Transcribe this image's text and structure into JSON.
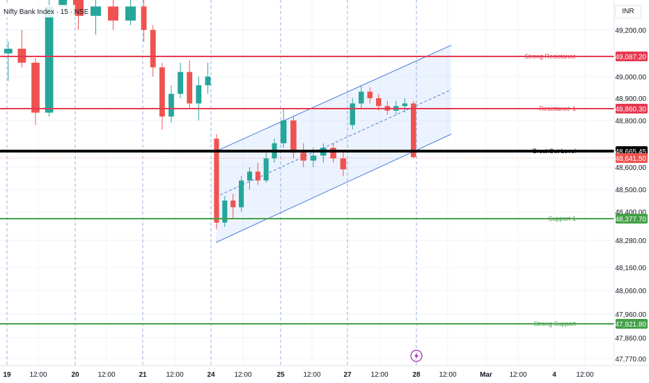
{
  "chart_data": {
    "type": "candlestick",
    "title": "Nifty Bank Index · 15 · NSE",
    "currency": "INR",
    "ylim": [
      47720,
      49370
    ],
    "y_ticks": [
      49200,
      49000,
      48900,
      48800,
      48600,
      48500,
      48400,
      48280,
      48160,
      48060,
      47960,
      47860,
      47770
    ],
    "x_ticks": [
      "19",
      "12:00",
      "20",
      "12:00",
      "21",
      "12:00",
      "24",
      "12:00",
      "25",
      "12:00",
      "27",
      "12:00",
      "28",
      "12:00",
      "Mar",
      "12:00",
      "4",
      "12:00"
    ],
    "session_breaks": [
      "19",
      "20",
      "21",
      "24",
      "25",
      "27",
      "28"
    ],
    "current_price": 48665.45,
    "last_marker": 48641.5,
    "levels": [
      {
        "label": "Strong Resistance",
        "value": 49087.2,
        "badge": "49,087.20",
        "color": "#e53950"
      },
      {
        "label": "Resistance-1",
        "value": 48860.3,
        "badge": "48,860.30",
        "color": "#e53950"
      },
      {
        "label": "BreakOut Level",
        "value": 48665.45,
        "badge": "48,665.45",
        "color": "#000000"
      },
      {
        "label": "Support-1",
        "value": 48377.7,
        "badge": "48,377.70",
        "color": "#43a047"
      },
      {
        "label": "Strong Support",
        "value": 47921.8,
        "badge": "47,921.80",
        "color": "#43a047"
      }
    ],
    "last_badge": "48,641.50",
    "channel": {
      "lower_start": {
        "x": 24.05,
        "y": 48270
      },
      "lower_end": {
        "x": 27.95,
        "y": 48740
      },
      "upper_start": {
        "x": 24.05,
        "y": 48665
      },
      "upper_end": {
        "x": 27.95,
        "y": 49135
      }
    },
    "candles": [
      {
        "d": "19a",
        "o": 49100,
        "h": 49150,
        "l": 48980,
        "c": 49120
      },
      {
        "d": "19b",
        "o": 49120,
        "h": 49200,
        "l": 49040,
        "c": 49060
      },
      {
        "d": "19c",
        "o": 49060,
        "h": 49080,
        "l": 48780,
        "c": 48840
      },
      {
        "d": "19d",
        "o": 48840,
        "h": 49330,
        "l": 48820,
        "c": 49300
      },
      {
        "d": "19e",
        "o": 49300,
        "h": 49360,
        "l": 49260,
        "c": 49330
      },
      {
        "d": "20a",
        "o": 49330,
        "h": 49380,
        "l": 49200,
        "c": 49260
      },
      {
        "d": "20b",
        "o": 49260,
        "h": 49340,
        "l": 49180,
        "c": 49300
      },
      {
        "d": "20c",
        "o": 49300,
        "h": 49350,
        "l": 49200,
        "c": 49240
      },
      {
        "d": "20d",
        "o": 49240,
        "h": 49330,
        "l": 49220,
        "c": 49300
      },
      {
        "d": "21a",
        "o": 49300,
        "h": 49360,
        "l": 49150,
        "c": 49200
      },
      {
        "d": "21b",
        "o": 49200,
        "h": 49220,
        "l": 49000,
        "c": 49040
      },
      {
        "d": "21c",
        "o": 49040,
        "h": 49060,
        "l": 48760,
        "c": 48820
      },
      {
        "d": "21d",
        "o": 48820,
        "h": 48960,
        "l": 48790,
        "c": 48920
      },
      {
        "d": "21e",
        "o": 48920,
        "h": 49060,
        "l": 48900,
        "c": 49020
      },
      {
        "d": "21f",
        "o": 49020,
        "h": 49070,
        "l": 48860,
        "c": 48880
      },
      {
        "d": "21g",
        "o": 48880,
        "h": 49000,
        "l": 48800,
        "c": 48960
      },
      {
        "d": "21h",
        "o": 48960,
        "h": 49060,
        "l": 48920,
        "c": 49000
      },
      {
        "d": "24a",
        "o": 48720,
        "h": 48740,
        "l": 48330,
        "c": 48360
      },
      {
        "d": "24b",
        "o": 48360,
        "h": 48470,
        "l": 48340,
        "c": 48450
      },
      {
        "d": "24c",
        "o": 48450,
        "h": 48480,
        "l": 48380,
        "c": 48420
      },
      {
        "d": "24d",
        "o": 48420,
        "h": 48560,
        "l": 48400,
        "c": 48540
      },
      {
        "d": "24e",
        "o": 48540,
        "h": 48600,
        "l": 48500,
        "c": 48580
      },
      {
        "d": "24f",
        "o": 48580,
        "h": 48620,
        "l": 48520,
        "c": 48540
      },
      {
        "d": "24g",
        "o": 48540,
        "h": 48660,
        "l": 48530,
        "c": 48640
      },
      {
        "d": "24h",
        "o": 48640,
        "h": 48720,
        "l": 48620,
        "c": 48700
      },
      {
        "d": "25a",
        "o": 48700,
        "h": 48860,
        "l": 48680,
        "c": 48800
      },
      {
        "d": "25b",
        "o": 48800,
        "h": 48820,
        "l": 48640,
        "c": 48660
      },
      {
        "d": "25c",
        "o": 48660,
        "h": 48700,
        "l": 48600,
        "c": 48630
      },
      {
        "d": "25d",
        "o": 48630,
        "h": 48680,
        "l": 48600,
        "c": 48650
      },
      {
        "d": "25e",
        "o": 48650,
        "h": 48700,
        "l": 48620,
        "c": 48680
      },
      {
        "d": "25f",
        "o": 48680,
        "h": 48700,
        "l": 48620,
        "c": 48640
      },
      {
        "d": "25g",
        "o": 48640,
        "h": 48660,
        "l": 48560,
        "c": 48590
      },
      {
        "d": "27a",
        "o": 48780,
        "h": 48900,
        "l": 48760,
        "c": 48880
      },
      {
        "d": "27b",
        "o": 48880,
        "h": 48960,
        "l": 48860,
        "c": 48930
      },
      {
        "d": "27c",
        "o": 48930,
        "h": 48950,
        "l": 48880,
        "c": 48900
      },
      {
        "d": "27d",
        "o": 48900,
        "h": 48920,
        "l": 48850,
        "c": 48870
      },
      {
        "d": "27e",
        "o": 48870,
        "h": 48890,
        "l": 48830,
        "c": 48850
      },
      {
        "d": "27f",
        "o": 48850,
        "h": 48890,
        "l": 48830,
        "c": 48870
      },
      {
        "d": "27g",
        "o": 48870,
        "h": 48900,
        "l": 48840,
        "c": 48880
      },
      {
        "d": "27h",
        "o": 48880,
        "h": 48890,
        "l": 48640,
        "c": 48645
      }
    ]
  }
}
